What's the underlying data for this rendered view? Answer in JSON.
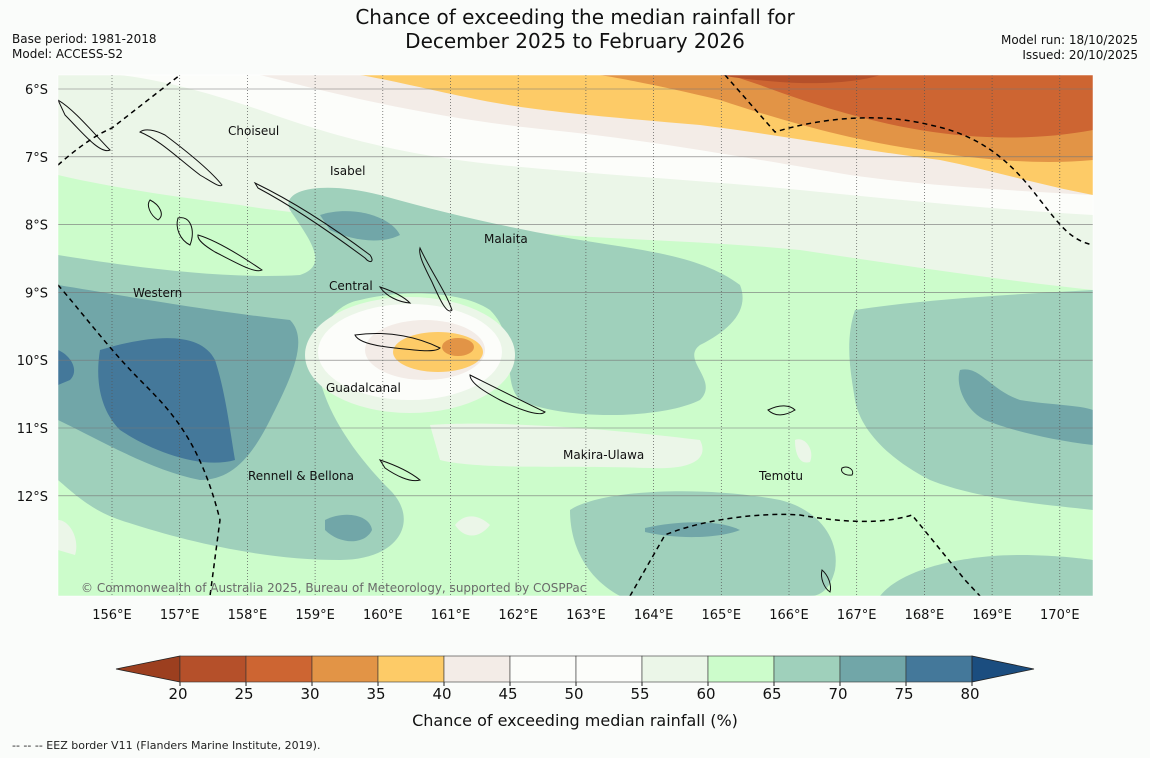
{
  "header": {
    "title_line1": "Chance of exceeding the median rainfall for",
    "title_line2": "December 2025 to February 2026",
    "base_period": "Base period: 1981-2018",
    "model": "Model: ACCESS-S2",
    "model_run": "Model run: 18/10/2025",
    "issued": "Issued: 20/10/2025"
  },
  "map": {
    "lon_ticks": [
      "156°E",
      "157°E",
      "158°E",
      "159°E",
      "160°E",
      "161°E",
      "162°E",
      "163°E",
      "164°E",
      "165°E",
      "166°E",
      "167°E",
      "168°E",
      "169°E",
      "170°E"
    ],
    "lat_ticks": [
      "6°S",
      "7°S",
      "8°S",
      "9°S",
      "10°S",
      "11°S",
      "12°S"
    ],
    "provinces": [
      "Choiseul",
      "Isabel",
      "Malaita",
      "Western",
      "Central",
      "Guadalcanal",
      "Makira-Ulawa",
      "Rennell & Bellona",
      "Temotu"
    ],
    "copyright": "© Commonwealth of Australia 2025, Bureau of Meteorology, supported by COSPPac"
  },
  "legend": {
    "ticks": [
      "20",
      "25",
      "30",
      "35",
      "40",
      "45",
      "50",
      "55",
      "60",
      "65",
      "70",
      "75",
      "80"
    ],
    "colors": [
      "#b5502a",
      "#cd6532",
      "#e29446",
      "#fdcb67",
      "#f3ece7",
      "#fcfdfa",
      "#fcfdfa",
      "#ebf6e8",
      "#ccfccb",
      "#9fd0bb",
      "#71a6a8",
      "#44789a"
    ],
    "under_color": "#9c3f1f",
    "over_color": "#1b4d7f",
    "label": "Chance of exceeding median rainfall (%)"
  },
  "footer": {
    "eez_note": "--  --  -- EEZ border V11 (Flanders Marine Institute, 2019)."
  }
}
